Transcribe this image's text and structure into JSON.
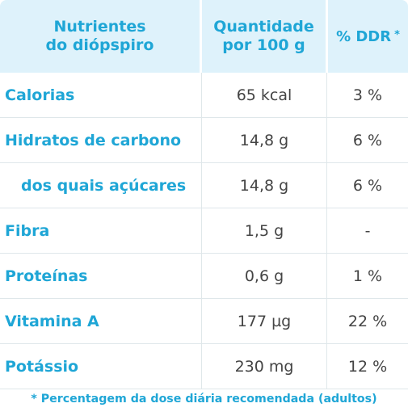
{
  "header": {
    "col1_line1": "Nutrientes",
    "col1_line2": "do diópspiro",
    "col2_line1": "Quantidade",
    "col2_line2": "por 100 g",
    "col3_label": "% DDR",
    "col3_marker": "*"
  },
  "rows": [
    {
      "nutrient": "Calorias",
      "amount": "65 kcal",
      "ddr": "3 %"
    },
    {
      "nutrient": "Hidratos de carbono",
      "amount": "14,8 g",
      "ddr": "6 %"
    },
    {
      "nutrient": "dos quais açúcares",
      "amount": "14,8 g",
      "ddr": "6 %"
    },
    {
      "nutrient": "Fibra",
      "amount": "1,5 g",
      "ddr": "-"
    },
    {
      "nutrient": "Proteínas",
      "amount": "0,6 g",
      "ddr": "1 %"
    },
    {
      "nutrient": "Vitamina A",
      "amount": "177 µg",
      "ddr": "22 %"
    },
    {
      "nutrient": "Potássio",
      "amount": "230 mg",
      "ddr": "12 %"
    }
  ],
  "footnote": "* Percentagem da dose diária recomendada (adultos)",
  "colors": {
    "accent": "#1fa6d6",
    "header_background": "#def2fb",
    "text": "#444444",
    "divider": "#dfe7ea"
  }
}
